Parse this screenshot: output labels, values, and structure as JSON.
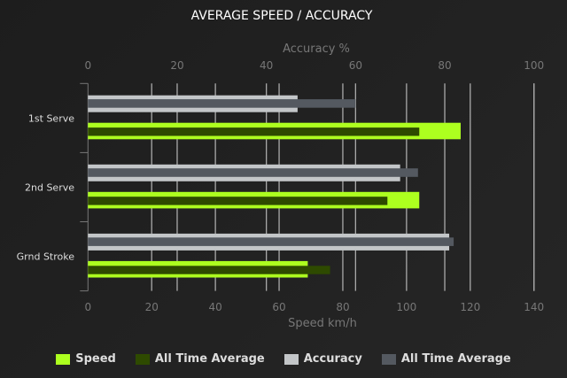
{
  "chart_data": {
    "type": "bar",
    "orientation": "horizontal",
    "title": "AVERAGE SPEED / ACCURACY",
    "categories": [
      "1st Serve",
      "2nd Serve",
      "Grnd Stroke"
    ],
    "top_axis": {
      "label": "Accuracy %",
      "range": [
        0,
        100
      ],
      "ticks": [
        0,
        20,
        40,
        60,
        80,
        100
      ]
    },
    "bottom_axis": {
      "label": "Speed km/h",
      "range": [
        0,
        140
      ],
      "ticks": [
        0,
        20,
        40,
        60,
        80,
        100,
        120,
        140
      ]
    },
    "grid": true,
    "legend_position": "bottom",
    "series": [
      {
        "name": "Speed",
        "axis": "bottom",
        "color": "#adff1f",
        "values": [
          117,
          104,
          69
        ]
      },
      {
        "name": "All Time Average",
        "axis": "bottom",
        "color": "#2e4a00",
        "values": [
          104,
          94,
          76
        ]
      },
      {
        "name": "Accuracy",
        "axis": "top",
        "color": "#c3c6c8",
        "values": [
          47,
          70,
          81
        ]
      },
      {
        "name": "All Time Average",
        "axis": "top",
        "color": "#545960",
        "values": [
          60,
          74,
          82
        ]
      }
    ]
  }
}
